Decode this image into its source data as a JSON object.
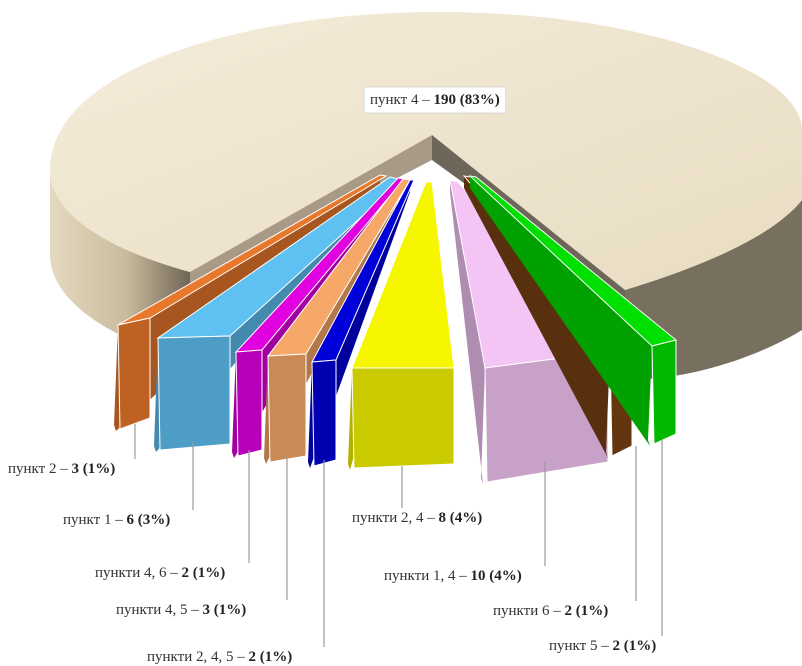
{
  "chart_data": {
    "type": "pie",
    "title": "",
    "slices": [
      {
        "name": "пункт 4",
        "value": 190,
        "pct": "83%",
        "color": "#efe6d3",
        "bold": "190 (83%)",
        "sep": " – "
      },
      {
        "name": "пункт 5",
        "value": 2,
        "pct": "1%",
        "color": "#00e000",
        "bold": "2 (1%)",
        "sep": " – "
      },
      {
        "name": "пункти 6",
        "value": 2,
        "pct": "1%",
        "color": "#7a4212",
        "bold": "2 (1%)",
        "sep": " – "
      },
      {
        "name": "пункти 1, 4",
        "value": 10,
        "pct": "4%",
        "color": "#f3c4f4",
        "bold": "10 (4%)",
        "sep": " –  "
      },
      {
        "name": "пункти 2, 4",
        "value": 8,
        "pct": "4%",
        "color": "#f6f600",
        "bold": "8 (4%)",
        "sep": " – "
      },
      {
        "name": "пункти 2, 4, 5",
        "value": 2,
        "pct": "1%",
        "color": "#0000d8",
        "bold": "2 (1%)",
        "sep": " – "
      },
      {
        "name": "пункти 4, 5",
        "value": 3,
        "pct": "1%",
        "color": "#f6a868",
        "bold": "3 (1%)",
        "sep": " –  "
      },
      {
        "name": "пункти 4, 6",
        "value": 2,
        "pct": "1%",
        "color": "#e000e0",
        "bold": "2 (1%)",
        "sep": " – "
      },
      {
        "name": "пункт 1",
        "value": 6,
        "pct": "3%",
        "color": "#5fc0f2",
        "bold": "6 (3%)",
        "sep": " – "
      },
      {
        "name": "пункт 2",
        "value": 3,
        "pct": "1%",
        "color": "#e8782c",
        "bold": "3 (1%)",
        "sep": " – "
      }
    ]
  }
}
